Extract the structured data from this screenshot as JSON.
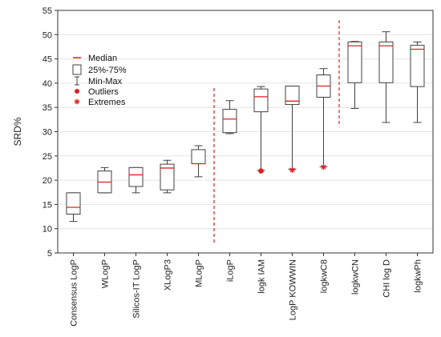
{
  "chart_data": {
    "type": "box",
    "ylabel": "SRD%",
    "ylim": [
      5,
      55
    ],
    "yticks": [
      5,
      10,
      15,
      20,
      25,
      30,
      35,
      40,
      45,
      50,
      55
    ],
    "grid": "horizontal",
    "legend_placement": "top-left",
    "legend": [
      {
        "key": "median",
        "label": "Median"
      },
      {
        "key": "iqr",
        "label": "25%-75%"
      },
      {
        "key": "range",
        "label": "Min-Max"
      },
      {
        "key": "outliers",
        "label": "Outliers"
      },
      {
        "key": "extremes",
        "label": "Extremes"
      }
    ],
    "categories": [
      "Consensus LogP",
      "WLogP",
      "Silicos-IT LogP",
      "XLogP3",
      "MLogP",
      "iLogP",
      "logk IAM",
      "LogP KOWWIN",
      "logkwC8",
      "logkwCN",
      "CHI log D",
      "logkwPh"
    ],
    "boxes": [
      {
        "min": 11.5,
        "q1": 13.0,
        "median": 14.4,
        "q3": 17.4,
        "max": 17.4
      },
      {
        "min": 17.4,
        "q1": 17.4,
        "median": 19.6,
        "q3": 21.9,
        "max": 22.6
      },
      {
        "min": 17.4,
        "q1": 18.7,
        "median": 21.1,
        "q3": 22.6,
        "max": 22.6
      },
      {
        "min": 17.4,
        "q1": 18.0,
        "median": 22.5,
        "q3": 23.3,
        "max": 24.1
      },
      {
        "min": 20.7,
        "q1": 23.4,
        "median": 23.4,
        "q3": 26.3,
        "max": 27.1
      },
      {
        "min": 29.6,
        "q1": 29.8,
        "median": 32.6,
        "q3": 34.6,
        "max": 36.4
      },
      {
        "min": 22.0,
        "q1": 34.1,
        "median": 37.2,
        "q3": 38.8,
        "max": 39.3,
        "outliers": [
          21.9
        ]
      },
      {
        "min": 22.3,
        "q1": 35.6,
        "median": 36.3,
        "q3": 39.4,
        "max": 39.4,
        "extremes": [
          22.1
        ]
      },
      {
        "min": 22.8,
        "q1": 37.1,
        "median": 39.4,
        "q3": 41.7,
        "max": 43.0,
        "extremes": [
          22.7
        ]
      },
      {
        "min": 34.8,
        "q1": 40.1,
        "median": 47.7,
        "q3": 48.5,
        "max": 48.6
      },
      {
        "min": 31.9,
        "q1": 40.1,
        "median": 47.7,
        "q3": 48.5,
        "max": 50.6
      },
      {
        "min": 31.9,
        "q1": 39.3,
        "median": 47.0,
        "q3": 47.8,
        "max": 48.5
      }
    ],
    "separators": [
      {
        "x_between": [
          4,
          5
        ],
        "from": 7,
        "to": 39
      },
      {
        "x_between": [
          8,
          9
        ],
        "from": 31,
        "to": 53
      }
    ],
    "colors": {
      "median": "#e02020",
      "box": "#404040",
      "grid": "#e4e4e4",
      "separator": "#e02020",
      "outlier": "#e02020",
      "extreme": "#e02020"
    }
  }
}
